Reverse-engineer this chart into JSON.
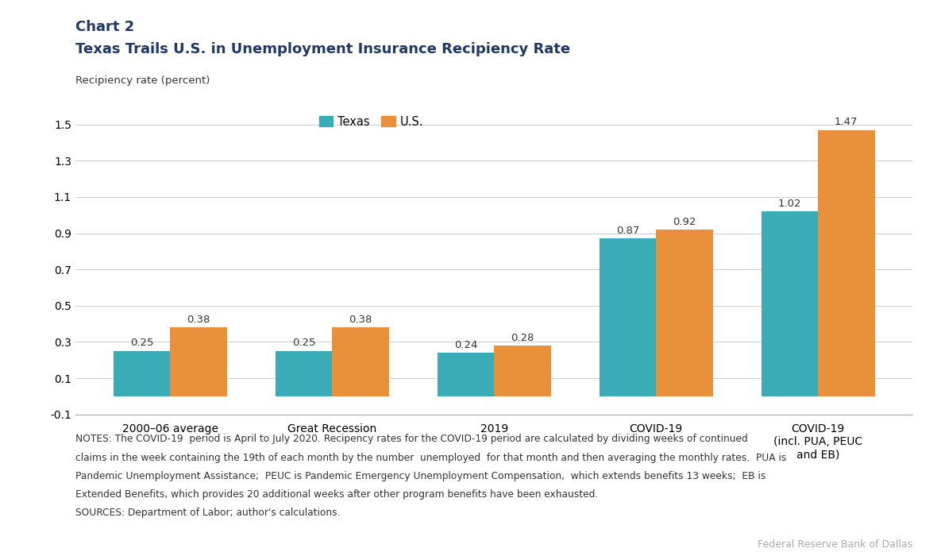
{
  "title_line1": "Chart 2",
  "title_line2": "Texas Trails U.S. in Unemployment Insurance Recipiency Rate",
  "ylabel": "Recipiency rate (percent)",
  "categories": [
    "2000–06 average",
    "Great Recession",
    "2019",
    "COVID-19",
    "COVID-19\n(incl. PUA, PEUC\nand EB)"
  ],
  "texas_values": [
    0.25,
    0.25,
    0.24,
    0.87,
    1.02
  ],
  "us_values": [
    0.38,
    0.38,
    0.28,
    0.92,
    1.47
  ],
  "texas_color": "#3aacb8",
  "us_color": "#e8913a",
  "ylim": [
    -0.1,
    1.6
  ],
  "yticks": [
    -0.1,
    0.1,
    0.3,
    0.5,
    0.7,
    0.9,
    1.1,
    1.3,
    1.5
  ],
  "bar_width": 0.35,
  "label_texas": "Texas",
  "label_us": "U.S.",
  "notes_line1": "NOTES: The COVID-19  period is April to July 2020. Recipency rates for the COVID-19 period are calculated by dividing weeks of continued",
  "notes_line2": "claims in the week containing the 19th of each month by the number  unemployed  for that month and then averaging the monthly rates.  PUA is",
  "notes_line3": "Pandemic Unemployment Assistance;  PEUC is Pandemic Emergency Unemployment Compensation,  which extends benefits 13 weeks;  EB is",
  "notes_line4": "Extended Benefits, which provides 20 additional weeks after other program benefits have been exhausted.",
  "sources": "SOURCES: Department of Labor; author's calculations.",
  "attribution": "Federal Reserve Bank of Dallas",
  "title_color": "#1f3864",
  "background_color": "#ffffff",
  "value_fontsize": 9.5,
  "tick_fontsize": 10,
  "notes_fontsize": 8.8
}
